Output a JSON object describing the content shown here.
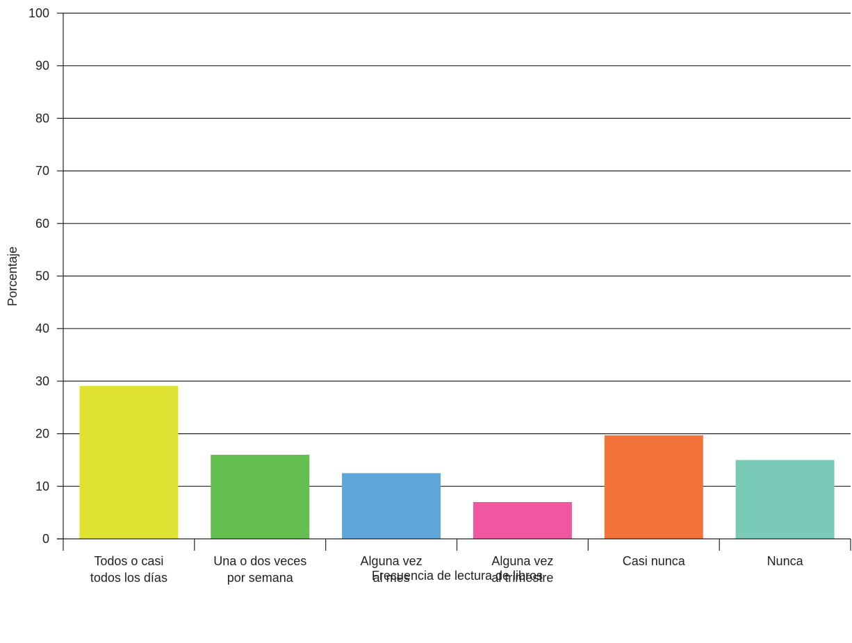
{
  "chart_data": {
    "type": "bar",
    "categories": [
      [
        "Todos o casi",
        "todos los días"
      ],
      [
        "Una o dos veces",
        "por semana"
      ],
      [
        "Alguna vez",
        "al mes"
      ],
      [
        "Alguna vez",
        "al trimestre"
      ],
      [
        "Casi nunca"
      ],
      [
        "Nunca"
      ]
    ],
    "values": [
      29.1,
      16.0,
      12.5,
      7.0,
      19.7,
      15.0
    ],
    "colors": [
      "#dfe233",
      "#64bd4f",
      "#5ea6d8",
      "#ef58a0",
      "#f2733a",
      "#79cbb8"
    ],
    "xlabel": "Frecuencia de lectura de libros",
    "ylabel": "Porcentaje",
    "ylim": [
      0,
      100
    ],
    "yticks": [
      0,
      10,
      20,
      30,
      40,
      50,
      60,
      70,
      80,
      90,
      100
    ],
    "grid": true
  }
}
